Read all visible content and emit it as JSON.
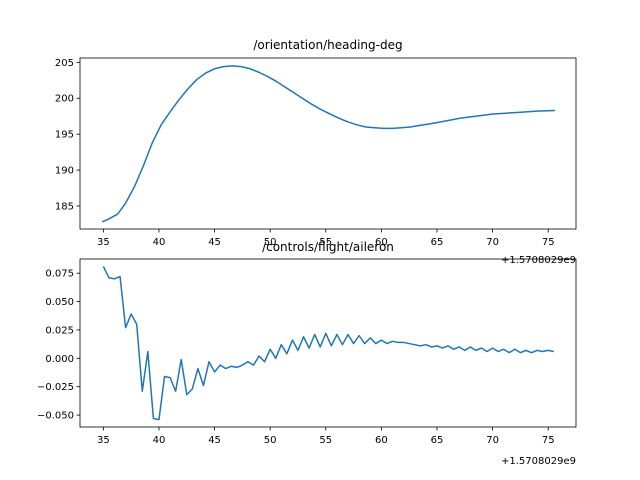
{
  "chart_data": [
    {
      "type": "line",
      "title": "/orientation/heading-deg",
      "xlabel": "",
      "ylabel": "",
      "x_offset_label": "+1.5708029e9",
      "xlim": [
        32.9,
        77.5
      ],
      "ylim": [
        181.8,
        205.6
      ],
      "x_ticks": [
        35,
        40,
        45,
        50,
        55,
        60,
        65,
        70,
        75
      ],
      "y_ticks": [
        185,
        190,
        195,
        200,
        205
      ],
      "grid": false,
      "color": "#1f77b4",
      "series": [
        {
          "x": [
            34.9,
            35.5,
            36.3,
            37.0,
            37.8,
            38.6,
            39.4,
            40.2,
            41.0,
            41.8,
            42.6,
            43.4,
            44.2,
            45.0,
            45.8,
            46.6,
            47.4,
            48.2,
            49.0,
            49.8,
            50.6,
            51.4,
            52.2,
            53.0,
            53.8,
            54.6,
            55.4,
            56.2,
            57.0,
            57.8,
            58.6,
            59.4,
            60.2,
            61.0,
            61.8,
            62.6,
            63.4,
            64.2,
            65.0,
            66.0,
            67.0,
            68.0,
            69.0,
            70.0,
            71.0,
            72.0,
            73.0,
            74.0,
            75.6
          ],
          "y": [
            182.8,
            183.2,
            183.9,
            185.4,
            187.7,
            190.6,
            193.8,
            196.3,
            198.1,
            199.8,
            201.3,
            202.6,
            203.5,
            204.1,
            204.4,
            204.5,
            204.4,
            204.1,
            203.6,
            203.0,
            202.3,
            201.5,
            200.7,
            199.9,
            199.1,
            198.4,
            197.8,
            197.2,
            196.7,
            196.3,
            196.0,
            195.9,
            195.8,
            195.8,
            195.9,
            196.0,
            196.2,
            196.4,
            196.6,
            196.9,
            197.2,
            197.4,
            197.6,
            197.8,
            197.9,
            198.0,
            198.1,
            198.2,
            198.3
          ]
        }
      ]
    },
    {
      "type": "line",
      "title": "/controls/flight/aileron",
      "xlabel": "",
      "ylabel": "",
      "x_offset_label": "+1.5708029e9",
      "xlim": [
        32.9,
        77.5
      ],
      "ylim": [
        -0.0605,
        0.0875
      ],
      "x_ticks": [
        35,
        40,
        45,
        50,
        55,
        60,
        65,
        70,
        75
      ],
      "y_ticks": [
        -0.05,
        -0.025,
        0.0,
        0.025,
        0.05,
        0.075
      ],
      "y_tick_labels": [
        "−0.050",
        "−0.025",
        "0.000",
        "0.025",
        "0.050",
        "0.075"
      ],
      "grid": false,
      "color": "#1f77b4",
      "series": [
        {
          "x": [
            35.0,
            35.5,
            36.0,
            36.5,
            37.0,
            37.5,
            38.0,
            38.5,
            39.0,
            39.5,
            40.0,
            40.5,
            41.0,
            41.5,
            42.0,
            42.5,
            43.0,
            43.5,
            44.0,
            44.5,
            45.0,
            45.5,
            46.0,
            46.5,
            47.0,
            47.5,
            48.0,
            48.5,
            49.0,
            49.5,
            50.0,
            50.5,
            51.0,
            51.5,
            52.0,
            52.5,
            53.0,
            53.5,
            54.0,
            54.5,
            55.0,
            55.5,
            56.0,
            56.5,
            57.0,
            57.5,
            58.0,
            58.5,
            59.0,
            59.5,
            60.0,
            60.5,
            61.0,
            61.5,
            62.0,
            62.5,
            63.0,
            63.5,
            64.0,
            64.5,
            65.0,
            65.5,
            66.0,
            66.5,
            67.0,
            67.5,
            68.0,
            68.5,
            69.0,
            69.5,
            70.0,
            70.5,
            71.0,
            71.5,
            72.0,
            72.5,
            73.0,
            73.5,
            74.0,
            74.5,
            75.0,
            75.5
          ],
          "y": [
            0.081,
            0.071,
            0.07,
            0.072,
            0.027,
            0.039,
            0.03,
            -0.029,
            0.006,
            -0.053,
            -0.054,
            -0.016,
            -0.017,
            -0.029,
            -0.001,
            -0.032,
            -0.027,
            -0.009,
            -0.024,
            -0.003,
            -0.012,
            -0.006,
            -0.009,
            -0.007,
            -0.008,
            -0.006,
            -0.003,
            -0.006,
            0.002,
            -0.003,
            0.008,
            0.0,
            0.012,
            0.004,
            0.016,
            0.007,
            0.019,
            0.009,
            0.021,
            0.01,
            0.022,
            0.011,
            0.021,
            0.012,
            0.021,
            0.013,
            0.02,
            0.013,
            0.018,
            0.013,
            0.016,
            0.013,
            0.015,
            0.014,
            0.014,
            0.013,
            0.012,
            0.011,
            0.012,
            0.01,
            0.011,
            0.009,
            0.011,
            0.008,
            0.01,
            0.007,
            0.01,
            0.007,
            0.009,
            0.006,
            0.009,
            0.006,
            0.008,
            0.005,
            0.008,
            0.005,
            0.007,
            0.005,
            0.007,
            0.006,
            0.007,
            0.006
          ]
        }
      ]
    }
  ]
}
